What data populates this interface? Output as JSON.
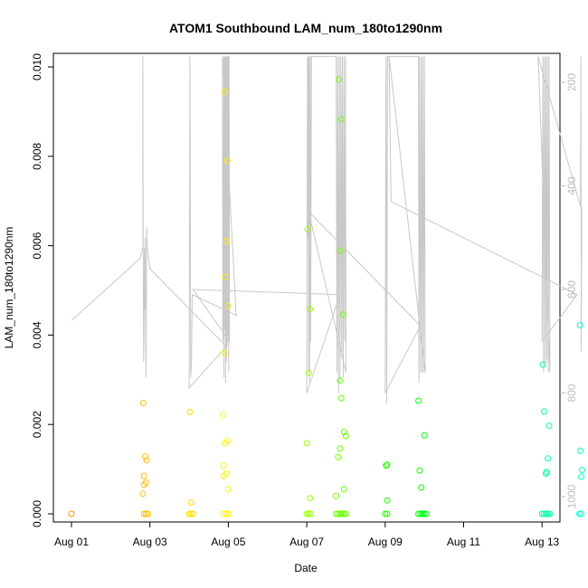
{
  "chart_data": {
    "type": "scatter",
    "title": "ATOM1 Southbound LAM_num_180to1290nm",
    "xlabel": "Date",
    "ylabel": "LAM_num_180to1290nm",
    "x_tick_labels": [
      "Aug 01",
      "Aug 03",
      "Aug 05",
      "Aug 07",
      "Aug 09",
      "Aug 11",
      "Aug 13"
    ],
    "y_tick_labels": [
      "0.000",
      "0.002",
      "0.004",
      "0.006",
      "0.008",
      "0.010"
    ],
    "y2_tick_labels": [
      "200",
      "400",
      "600",
      "800",
      "1000"
    ],
    "xlim": [
      "2018-08-01",
      "2018-08-13"
    ],
    "x_ticks": [
      0,
      2,
      4,
      6,
      8,
      10,
      12
    ],
    "ylim": [
      0,
      0.01
    ],
    "y_ticks": [
      0,
      0.002,
      0.004,
      0.006,
      0.008,
      0.01
    ],
    "y2lim": [
      1030,
      150
    ],
    "y2_ticks": [
      200,
      400,
      600,
      800,
      1000
    ],
    "secondary_axis": "right, reversed",
    "grid": false,
    "legend": "none",
    "series": [
      {
        "kind": "points",
        "color_scale": [
          "#ff8c00",
          "#ffff00",
          "#00ff00",
          "#00ffcc"
        ],
        "points": [
          [
            0.0,
            0.0
          ],
          [
            1.85,
            0.0
          ],
          [
            1.9,
            0.0
          ],
          [
            1.95,
            0.0
          ],
          [
            1.82,
            0.00045
          ],
          [
            1.85,
            0.00065
          ],
          [
            1.9,
            0.0007
          ],
          [
            1.85,
            0.00085
          ],
          [
            1.92,
            0.0012
          ],
          [
            1.88,
            0.00128
          ],
          [
            1.83,
            0.00248
          ],
          [
            3.0,
            0.0
          ],
          [
            3.05,
            0.0
          ],
          [
            3.1,
            0.0
          ],
          [
            3.05,
            0.00025
          ],
          [
            3.02,
            0.00228
          ],
          [
            3.88,
            0.0
          ],
          [
            3.95,
            0.0
          ],
          [
            4.0,
            0.0
          ],
          [
            4.0,
            0.00055
          ],
          [
            3.88,
            0.00085
          ],
          [
            3.95,
            0.0009
          ],
          [
            3.88,
            0.00108
          ],
          [
            3.92,
            0.00158
          ],
          [
            3.98,
            0.00163
          ],
          [
            3.87,
            0.00221
          ],
          [
            3.9,
            0.0036
          ],
          [
            4.0,
            0.00465
          ],
          [
            3.92,
            0.0053
          ],
          [
            3.95,
            0.0061
          ],
          [
            3.98,
            0.0079
          ],
          [
            3.9,
            0.00945
          ],
          [
            6.0,
            0.0
          ],
          [
            6.05,
            0.0
          ],
          [
            6.1,
            0.0
          ],
          [
            6.08,
            0.00035
          ],
          [
            6.0,
            0.00158
          ],
          [
            6.05,
            0.00315
          ],
          [
            6.08,
            0.00458
          ],
          [
            6.02,
            0.00637
          ],
          [
            6.75,
            0.0
          ],
          [
            6.8,
            0.0
          ],
          [
            6.85,
            0.0
          ],
          [
            6.9,
            0.0
          ],
          [
            6.95,
            0.0
          ],
          [
            7.0,
            0.0
          ],
          [
            6.75,
            0.0004
          ],
          [
            6.95,
            0.00055
          ],
          [
            6.8,
            0.00127
          ],
          [
            6.85,
            0.00146
          ],
          [
            7.0,
            0.00174
          ],
          [
            6.95,
            0.00183
          ],
          [
            6.88,
            0.00259
          ],
          [
            6.85,
            0.00298
          ],
          [
            6.93,
            0.00446
          ],
          [
            6.85,
            0.00589
          ],
          [
            6.88,
            0.00883
          ],
          [
            6.82,
            0.00972
          ],
          [
            8.0,
            0.0
          ],
          [
            8.05,
            0.0
          ],
          [
            8.05,
            0.0003
          ],
          [
            8.02,
            0.00108
          ],
          [
            8.05,
            0.0011
          ],
          [
            8.85,
            0.0
          ],
          [
            8.9,
            0.0
          ],
          [
            8.95,
            0.0
          ],
          [
            9.0,
            0.0
          ],
          [
            9.05,
            0.0
          ],
          [
            8.92,
            0.00059
          ],
          [
            8.88,
            0.00097
          ],
          [
            9.0,
            0.00176
          ],
          [
            8.85,
            0.00253
          ],
          [
            12.0,
            0.0
          ],
          [
            12.05,
            0.0
          ],
          [
            12.1,
            0.0
          ],
          [
            12.15,
            0.0
          ],
          [
            12.2,
            0.0
          ],
          [
            12.1,
            0.0009
          ],
          [
            12.12,
            0.00094
          ],
          [
            12.15,
            0.00124
          ],
          [
            12.18,
            0.00197
          ],
          [
            12.05,
            0.00229
          ],
          [
            12.02,
            0.00334
          ],
          [
            12.95,
            0.0
          ],
          [
            13.0,
            0.0
          ],
          [
            13.0,
            0.00083
          ],
          [
            13.02,
            0.00098
          ],
          [
            12.98,
            0.00141
          ],
          [
            12.97,
            0.00422
          ]
        ]
      },
      {
        "kind": "line",
        "axis": "right",
        "color": "#c8c8c8",
        "points": [
          [
            0.0,
            660
          ],
          [
            1.75,
            540
          ],
          [
            1.82,
            520
          ],
          [
            1.82,
            150
          ],
          [
            1.83,
            540
          ],
          [
            1.84,
            740
          ],
          [
            1.85,
            700
          ],
          [
            1.86,
            520
          ],
          [
            1.87,
            640
          ],
          [
            1.88,
            500
          ],
          [
            1.9,
            770
          ],
          [
            1.92,
            480
          ],
          [
            1.93,
            520
          ],
          [
            2.0,
            560
          ],
          [
            3.95,
            710
          ],
          [
            3.0,
            790
          ],
          [
            3.02,
            150
          ],
          [
            3.04,
            770
          ],
          [
            3.06,
            740
          ],
          [
            3.08,
            610
          ],
          [
            4.2,
            650
          ],
          [
            3.85,
            150
          ],
          [
            3.86,
            700
          ],
          [
            3.87,
            640
          ],
          [
            3.88,
            150
          ],
          [
            3.89,
            770
          ],
          [
            3.9,
            150
          ],
          [
            3.91,
            680
          ],
          [
            3.92,
            150
          ],
          [
            3.93,
            780
          ],
          [
            3.94,
            150
          ],
          [
            3.95,
            740
          ],
          [
            3.96,
            150
          ],
          [
            3.97,
            710
          ],
          [
            3.98,
            150
          ],
          [
            3.99,
            690
          ],
          [
            4.0,
            150
          ],
          [
            4.01,
            760
          ],
          [
            4.02,
            150
          ],
          [
            4.03,
            700
          ],
          [
            3.1,
            600
          ],
          [
            6.85,
            610
          ],
          [
            6.0,
            800
          ],
          [
            6.02,
            150
          ],
          [
            6.03,
            500
          ],
          [
            6.04,
            150
          ],
          [
            6.05,
            760
          ],
          [
            6.06,
            150
          ],
          [
            6.07,
            780
          ],
          [
            6.08,
            520
          ],
          [
            6.09,
            150
          ],
          [
            6.1,
            700
          ],
          [
            6.12,
            150
          ],
          [
            6.75,
            150
          ],
          [
            6.77,
            760
          ],
          [
            6.79,
            150
          ],
          [
            6.81,
            800
          ],
          [
            6.83,
            150
          ],
          [
            6.85,
            780
          ],
          [
            6.87,
            150
          ],
          [
            6.89,
            730
          ],
          [
            6.91,
            150
          ],
          [
            6.93,
            770
          ],
          [
            6.95,
            150
          ],
          [
            6.97,
            700
          ],
          [
            6.99,
            150
          ],
          [
            7.0,
            760
          ],
          [
            6.05,
            450
          ],
          [
            8.9,
            670
          ],
          [
            8.0,
            800
          ],
          [
            8.02,
            150
          ],
          [
            8.04,
            820
          ],
          [
            8.06,
            150
          ],
          [
            8.85,
            150
          ],
          [
            8.86,
            780
          ],
          [
            8.88,
            150
          ],
          [
            8.9,
            760
          ],
          [
            8.92,
            150
          ],
          [
            8.94,
            760
          ],
          [
            8.96,
            150
          ],
          [
            8.98,
            760
          ],
          [
            9.0,
            150
          ],
          [
            9.02,
            760
          ],
          [
            8.1,
            150
          ],
          [
            8.15,
            430
          ],
          [
            12.9,
            610
          ],
          [
            12.0,
            700
          ],
          [
            12.02,
            150
          ],
          [
            12.04,
            760
          ],
          [
            12.06,
            150
          ],
          [
            12.08,
            750
          ],
          [
            12.1,
            150
          ],
          [
            12.12,
            740
          ],
          [
            12.14,
            150
          ],
          [
            12.16,
            760
          ],
          [
            12.18,
            150
          ],
          [
            12.2,
            760
          ],
          [
            11.9,
            150
          ],
          [
            12.98,
            440
          ],
          [
            12.99,
            150
          ],
          [
            13.0,
            720
          ],
          [
            13.01,
            440
          ]
        ]
      }
    ]
  }
}
